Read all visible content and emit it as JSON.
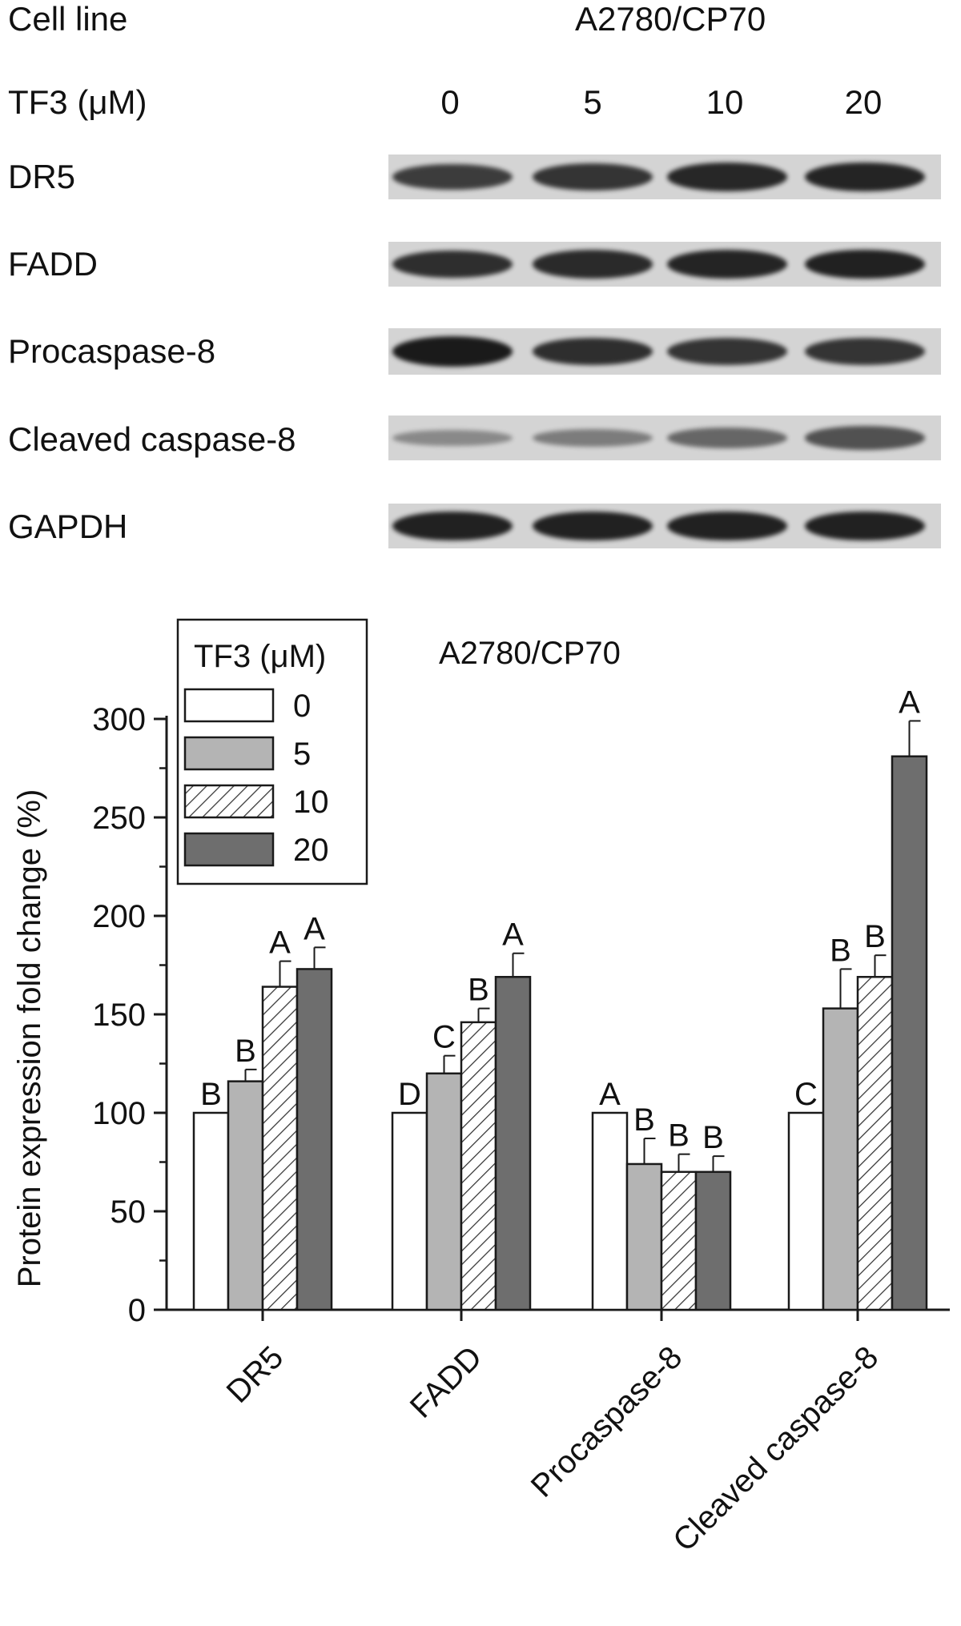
{
  "blot": {
    "cell_line_label": "Cell line",
    "cell_line_value": "A2780/CP70",
    "treatment_label": "TF3 (μM)",
    "doses": [
      "0",
      "5",
      "10",
      "20"
    ],
    "rows": [
      {
        "name": "DR5",
        "intensity": [
          0.75,
          0.82,
          0.9,
          0.92
        ]
      },
      {
        "name": "FADD",
        "intensity": [
          0.85,
          0.88,
          0.92,
          0.95
        ]
      },
      {
        "name": "Procaspase-8",
        "intensity": [
          1.0,
          0.85,
          0.82,
          0.82
        ]
      },
      {
        "name": "Cleaved caspase-8",
        "intensity": [
          0.2,
          0.3,
          0.45,
          0.6
        ]
      },
      {
        "name": "GAPDH",
        "intensity": [
          0.95,
          0.95,
          0.95,
          0.95
        ]
      }
    ]
  },
  "chart_data": {
    "type": "bar",
    "title": "A2780/CP70",
    "ylabel": "Protein expression fold change (%)",
    "xlabel": "",
    "ylim": [
      0,
      300
    ],
    "yticks": [
      0,
      50,
      100,
      150,
      200,
      250,
      300
    ],
    "categories": [
      "DR5",
      "FADD",
      "Procaspase-8",
      "Cleaved caspase-8"
    ],
    "legend_title": "TF3 (μM)",
    "legend_position": "top-left",
    "series": [
      {
        "name": "0",
        "style": "white",
        "values": [
          100,
          100,
          100,
          100
        ],
        "errors": [
          0,
          0,
          0,
          0
        ],
        "letters": [
          "B",
          "D",
          "A",
          "C"
        ]
      },
      {
        "name": "5",
        "style": "light-gray",
        "values": [
          116,
          120,
          74,
          153
        ],
        "errors": [
          6,
          9,
          13,
          20
        ],
        "letters": [
          "B",
          "C",
          "B",
          "B"
        ]
      },
      {
        "name": "10",
        "style": "hatched",
        "values": [
          164,
          146,
          70,
          169
        ],
        "errors": [
          13,
          7,
          9,
          11
        ],
        "letters": [
          "A",
          "B",
          "B",
          "B"
        ]
      },
      {
        "name": "20",
        "style": "dark-gray",
        "values": [
          173,
          169,
          70,
          281
        ],
        "errors": [
          11,
          12,
          8,
          18
        ],
        "letters": [
          "A",
          "A",
          "B",
          "A"
        ]
      }
    ],
    "colors": {
      "white": "#ffffff",
      "light-gray": "#b4b4b4",
      "dark-gray": "#6e6e6e",
      "outline": "#1a1a1a"
    }
  }
}
